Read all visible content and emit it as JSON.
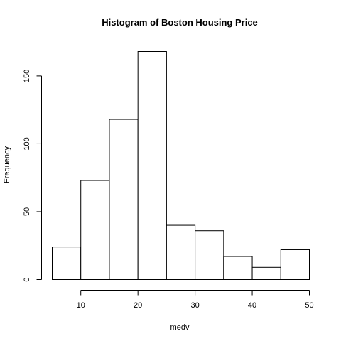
{
  "chart_data": {
    "type": "bar",
    "title": "Histogram of Boston Housing Price",
    "xlabel": "medv",
    "ylabel": "Frequency",
    "bins": [
      {
        "start": 5,
        "end": 10,
        "count": 24
      },
      {
        "start": 10,
        "end": 15,
        "count": 73
      },
      {
        "start": 15,
        "end": 20,
        "count": 118
      },
      {
        "start": 20,
        "end": 25,
        "count": 168
      },
      {
        "start": 25,
        "end": 30,
        "count": 40
      },
      {
        "start": 30,
        "end": 35,
        "count": 36
      },
      {
        "start": 35,
        "end": 40,
        "count": 17
      },
      {
        "start": 40,
        "end": 45,
        "count": 9
      },
      {
        "start": 45,
        "end": 50,
        "count": 22
      }
    ],
    "xlim": [
      5,
      50
    ],
    "ylim": [
      0,
      168
    ],
    "x_ticks": [
      10,
      20,
      30,
      40,
      50
    ],
    "y_ticks": [
      0,
      50,
      100,
      150
    ],
    "grid": false,
    "bar_fill": "#ffffff",
    "bar_stroke": "#000000"
  }
}
